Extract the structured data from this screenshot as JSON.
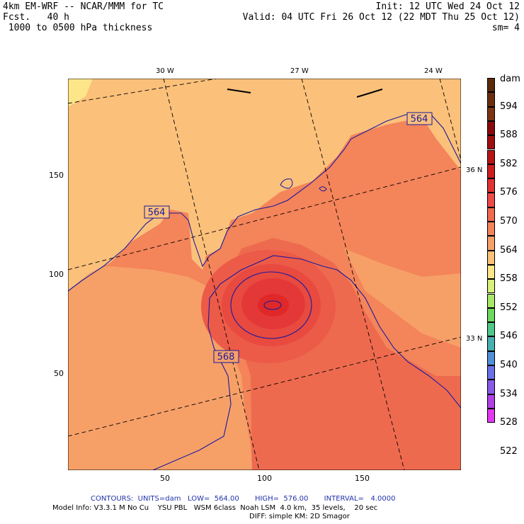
{
  "header": {
    "title": "4km EM-WRF -- NCAR/MMM for TC",
    "forecast": "Fcst.   40 h",
    "field": " 1000 to 0500 hPa thickness",
    "init": "Init: 12 UTC Wed 24 Oct 12",
    "valid": "Valid: 04 UTC Fri 26 Oct 12 (22 MDT Thu 25 Oct 12)",
    "smoothing": "sm= 4"
  },
  "axes": {
    "x_ticks": [
      "50",
      "100",
      "150"
    ],
    "y_ticks": [
      "150",
      "100",
      "50"
    ],
    "longitude_labels": [
      "30 W",
      "27 W",
      "24 W"
    ],
    "latitude_labels": [
      "36 N",
      "33 N"
    ]
  },
  "contour_labels": [
    "564",
    "564",
    "568"
  ],
  "colorbar": {
    "units": "dam",
    "levels": [
      "594",
      "588",
      "582",
      "576",
      "570",
      "564",
      "558",
      "552",
      "546",
      "540",
      "534",
      "528",
      "522"
    ],
    "colors": [
      "#5a2a0a",
      "#6b2f0e",
      "#7c3412",
      "#8a0a0a",
      "#a00e0e",
      "#b81414",
      "#cc1e1e",
      "#e03232",
      "#ee4a4a",
      "#f26a4e",
      "#f4845a",
      "#f6a068",
      "#fbc07a",
      "#fde68a",
      "#d8f07a",
      "#a8e868",
      "#6ed860",
      "#4ec888",
      "#48b0b0",
      "#5090d8",
      "#6a70e8",
      "#8858e8",
      "#b040e8",
      "#e238f4"
    ]
  },
  "footer": {
    "contours": "CONTOURS:  UNITS=dam   LOW=  564.00       HIGH=  576.00       INTERVAL=   4.0000",
    "model_info": "Model Info: V3.3.1 M No Cu    YSU PBL   WSM 6class  Noah LSM  4.0 km,  35 levels,    20 sec",
    "model_info2": "DIFF: simple KM: 2D Smagor"
  }
}
